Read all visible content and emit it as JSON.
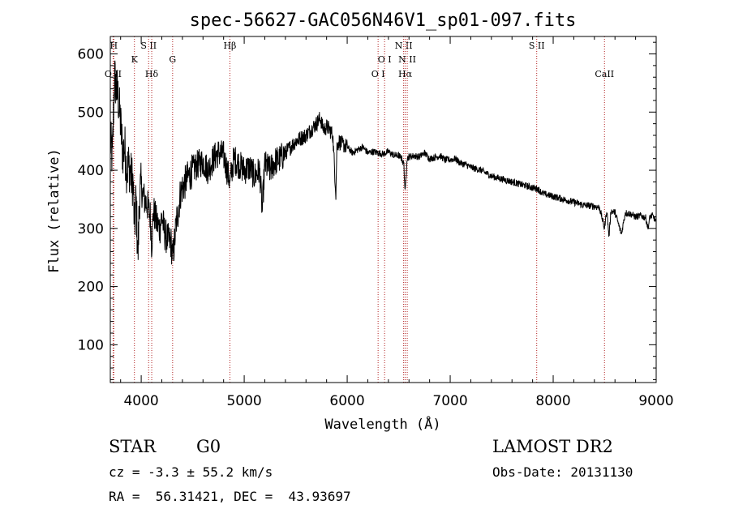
{
  "chart_data": {
    "type": "line",
    "title": "spec-56627-GAC056N46V1_sp01-097.fits",
    "xlabel": "Wavelength (Å)",
    "ylabel": "Flux (relative)",
    "xlim": [
      3700,
      9000
    ],
    "ylim": [
      35,
      630
    ],
    "x_ticks": [
      4000,
      5000,
      6000,
      7000,
      8000,
      9000
    ],
    "y_ticks": [
      100,
      200,
      300,
      400,
      500,
      600
    ],
    "grid": false,
    "series": [
      {
        "name": "flux",
        "x": [
          3700,
          3720,
          3740,
          3760,
          3780,
          3800,
          3820,
          3840,
          3860,
          3880,
          3900,
          3920,
          3935,
          3950,
          3968,
          3985,
          4000,
          4030,
          4060,
          4090,
          4101,
          4120,
          4150,
          4180,
          4200,
          4230,
          4260,
          4290,
          4305,
          4320,
          4340,
          4360,
          4380,
          4400,
          4430,
          4460,
          4500,
          4550,
          4600,
          4650,
          4700,
          4750,
          4800,
          4861,
          4900,
          4950,
          5000,
          5050,
          5100,
          5150,
          5175,
          5200,
          5250,
          5300,
          5350,
          5400,
          5450,
          5500,
          5550,
          5600,
          5650,
          5700,
          5720,
          5740,
          5760,
          5780,
          5800,
          5830,
          5860,
          5890,
          5900,
          5920,
          5950,
          6000,
          6050,
          6100,
          6150,
          6200,
          6250,
          6300,
          6350,
          6400,
          6450,
          6500,
          6530,
          6550,
          6563,
          6580,
          6600,
          6650,
          6700,
          6750,
          6800,
          6850,
          6900,
          6950,
          7000,
          7050,
          7100,
          7150,
          7200,
          7300,
          7400,
          7500,
          7600,
          7700,
          7800,
          7850,
          7900,
          8000,
          8100,
          8200,
          8300,
          8400,
          8450,
          8498,
          8520,
          8542,
          8560,
          8600,
          8662,
          8700,
          8750,
          8800,
          8850,
          8900,
          8920,
          8940,
          8960,
          8980,
          9000
        ],
        "y": [
          450,
          420,
          560,
          540,
          520,
          480,
          430,
          440,
          400,
          410,
          390,
          380,
          300,
          350,
          250,
          360,
          370,
          350,
          340,
          320,
          270,
          330,
          310,
          300,
          320,
          290,
          280,
          275,
          250,
          270,
          310,
          330,
          360,
          370,
          380,
          390,
          400,
          410,
          415,
          400,
          420,
          430,
          425,
          380,
          420,
          410,
          400,
          405,
          390,
          400,
          330,
          410,
          400,
          415,
          420,
          430,
          440,
          450,
          455,
          460,
          470,
          480,
          485,
          490,
          475,
          470,
          475,
          470,
          460,
          360,
          440,
          450,
          445,
          440,
          430,
          435,
          440,
          430,
          432,
          430,
          428,
          432,
          426,
          425,
          420,
          410,
          360,
          420,
          423,
          425,
          423,
          430,
          420,
          422,
          425,
          418,
          418,
          420,
          412,
          410,
          405,
          400,
          390,
          385,
          380,
          375,
          370,
          368,
          360,
          355,
          350,
          345,
          340,
          338,
          336,
          300,
          332,
          285,
          330,
          328,
          290,
          327,
          325,
          320,
          322,
          318,
          300,
          320,
          322,
          318,
          310
        ]
      }
    ],
    "line_markers": [
      {
        "label": "O II",
        "wavelength": 3727,
        "label_row": 3
      },
      {
        "label": "H",
        "wavelength": 3734,
        "label_row": 0
      },
      {
        "label": "K",
        "wavelength": 3934,
        "label_row": 1
      },
      {
        "label": "S II",
        "wavelength": 4072,
        "label_row": 0
      },
      {
        "label": "Hδ",
        "wavelength": 4102,
        "label_row": 2
      },
      {
        "label": "G",
        "wavelength": 4305,
        "label_row": 1
      },
      {
        "label": "Hβ",
        "wavelength": 4861,
        "label_row": 0
      },
      {
        "label": "O I",
        "wavelength": 6300,
        "label_row": 2
      },
      {
        "label": "O I",
        "wavelength": 6363,
        "label_row": 1
      },
      {
        "label": "N II",
        "wavelength": 6548,
        "label_row": 0
      },
      {
        "label": "Hα",
        "wavelength": 6563,
        "label_row": 2
      },
      {
        "label": "N II",
        "wavelength": 6583,
        "label_row": 1
      },
      {
        "label": "S II",
        "wavelength": 7840,
        "label_row": 0
      },
      {
        "label": "CaII",
        "wavelength": 8498,
        "label_row": 2
      }
    ]
  },
  "info": {
    "object_class": "STAR",
    "subclass": "G0",
    "redshift": "cz = -3.3 ± 55.2 km/s",
    "coords": "RA =  56.31421, DEC =  43.93697",
    "survey": "LAMOST DR2",
    "obs_date": "Obs-Date: 20131130"
  },
  "colors": {
    "spectrum": "#000000",
    "marker_line": "#b22222",
    "axes": "#000000",
    "background": "#ffffff"
  }
}
